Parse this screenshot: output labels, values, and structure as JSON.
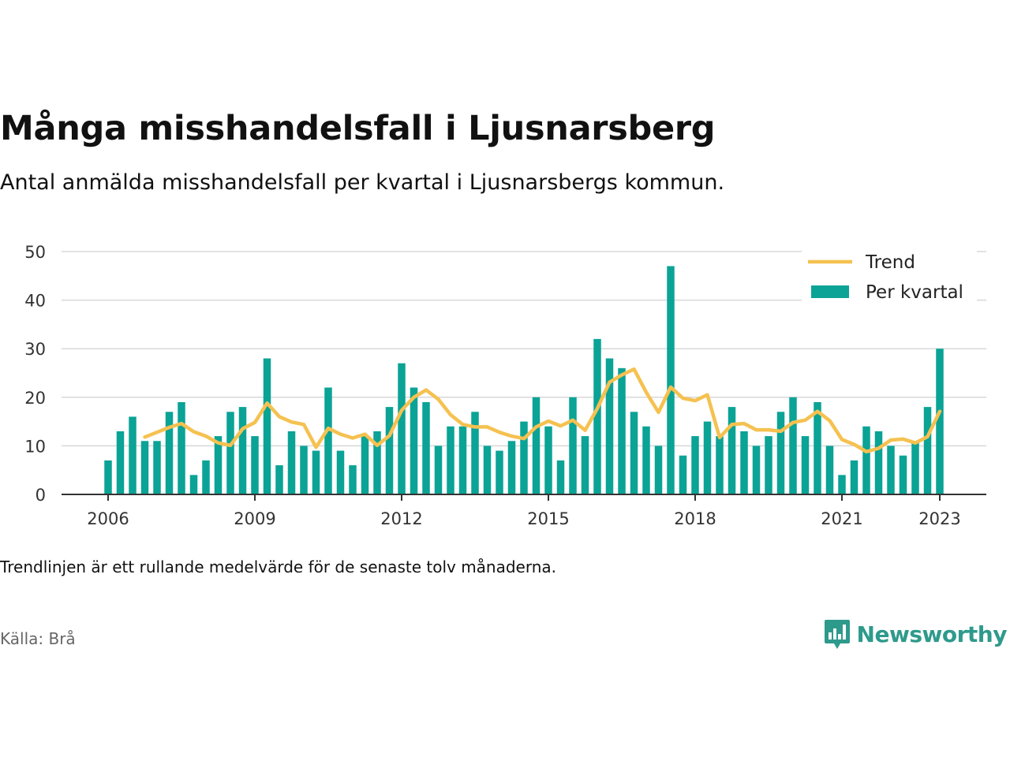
{
  "header": {
    "title": "Många misshandelsfall i Ljusnarsberg",
    "subtitle": "Antal anmälda misshandelsfall per kvartal i Ljusnarsbergs kommun."
  },
  "footer": {
    "note": "Trendlinjen är ett rullande medelvärde för de senaste tolv månaderna.",
    "source": "Källa: Brå",
    "brand": "Newsworthy",
    "brand_icon": "bar-chart-speech-bubble-icon"
  },
  "colors": {
    "bars": "#0aa396",
    "trend": "#f5c150",
    "grid": "#d8d8d8",
    "axis": "#333333",
    "brand": "#2e9a8c"
  },
  "chart_data": {
    "type": "bar",
    "x_start_year": 2006,
    "periods_per_year": 4,
    "xticks": [
      "2006",
      "2009",
      "2012",
      "2015",
      "2018",
      "2021",
      "2023"
    ],
    "yticks": [
      0,
      10,
      20,
      30,
      40,
      50
    ],
    "ylim": [
      0,
      50
    ],
    "grid": "horizontal",
    "legend_position": "top-right",
    "series": [
      {
        "name": "Per kvartal",
        "type": "bar",
        "values": [
          7,
          13,
          16,
          11,
          11,
          17,
          19,
          4,
          7,
          12,
          17,
          18,
          12,
          28,
          6,
          13,
          10,
          9,
          22,
          9,
          6,
          12,
          13,
          18,
          27,
          22,
          19,
          10,
          14,
          14,
          17,
          10,
          9,
          11,
          15,
          20,
          14,
          7,
          20,
          12,
          32,
          28,
          26,
          17,
          14,
          10,
          47,
          8,
          12,
          15,
          12,
          18,
          13,
          10,
          12,
          17,
          20,
          12,
          19,
          10,
          4,
          7,
          14,
          13,
          10,
          8,
          11,
          18,
          30
        ]
      },
      {
        "name": "Trend",
        "type": "line",
        "start_index": 3,
        "values": [
          11.8,
          12.8,
          13.8,
          14.6,
          12.9,
          12.0,
          10.6,
          10.1,
          13.5,
          14.8,
          18.8,
          16.0,
          14.9,
          14.4,
          9.7,
          13.6,
          12.4,
          11.6,
          12.4,
          10.1,
          12.1,
          17.3,
          20.0,
          21.5,
          19.6,
          16.4,
          14.4,
          13.9,
          13.9,
          12.8,
          12.0,
          11.5,
          13.9,
          15.1,
          14.1,
          15.3,
          13.2,
          17.7,
          23.1,
          24.6,
          25.8,
          21.0,
          16.9,
          22.1,
          19.8,
          19.3,
          20.5,
          11.7,
          14.4,
          14.6,
          13.3,
          13.3,
          13.0,
          14.8,
          15.3,
          17.1,
          15.2,
          11.3,
          10.3,
          8.8,
          9.5,
          11.2,
          11.4,
          10.6,
          11.9,
          17.1
        ]
      }
    ]
  }
}
